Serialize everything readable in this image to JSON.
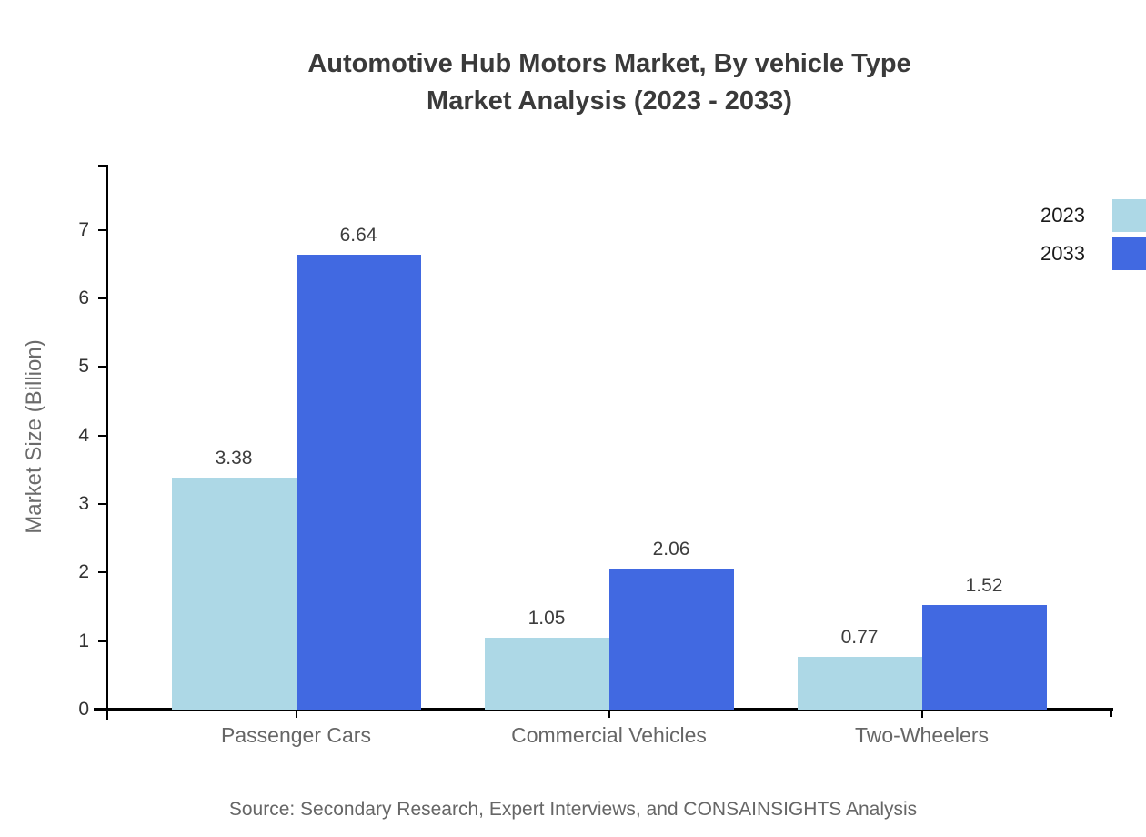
{
  "title": {
    "line1": "Automotive Hub Motors Market, By vehicle Type",
    "line2": "Market Analysis (2023 - 2033)"
  },
  "chart_data": {
    "type": "bar",
    "title": "Automotive Hub Motors Market, By vehicle Type Market Analysis (2023 - 2033)",
    "categories": [
      "Passenger Cars",
      "Commercial Vehicles",
      "Two-Wheelers"
    ],
    "series": [
      {
        "name": "2023",
        "color": "#add8e6",
        "values": [
          3.38,
          1.05,
          0.77
        ]
      },
      {
        "name": "2033",
        "color": "#4169e1",
        "values": [
          6.64,
          2.06,
          1.52
        ]
      }
    ],
    "xlabel": "",
    "ylabel": "Market Size (Billion)",
    "yticks": [
      0,
      1,
      2,
      3,
      4,
      5,
      6,
      7
    ],
    "ylim": [
      0,
      7.95
    ],
    "grid": false,
    "value_labels": true,
    "value_label_decimals": 2,
    "legend_position": "top-right"
  },
  "source": "Source: Secondary Research, Expert Interviews, and CONSAINSIGHTS Analysis",
  "colors": {
    "series_2023": "#add8e6",
    "series_2033": "#4169e1",
    "axis": "#000000",
    "title_text": "#3a3a3a",
    "category_text": "#666666",
    "tick_text": "#333333",
    "value_text": "#3d3d3d",
    "source_text": "#666666",
    "background": "#ffffff"
  }
}
